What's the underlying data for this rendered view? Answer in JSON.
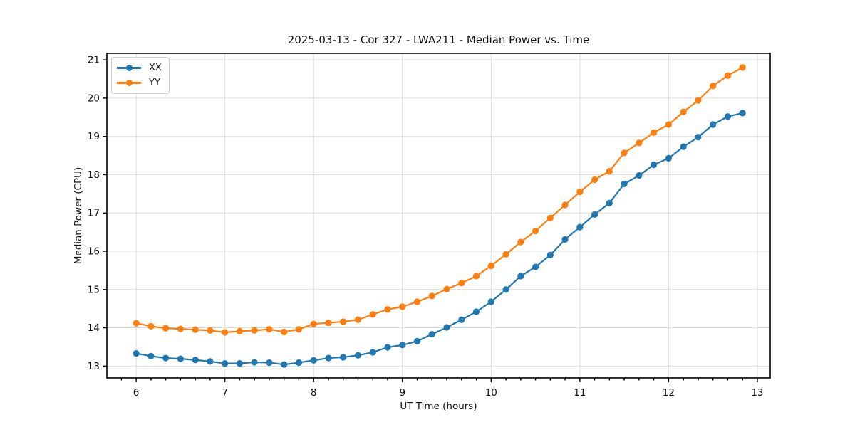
{
  "chart_data": {
    "type": "line",
    "title": "2025-03-13 - Cor 327 - LWA211 - Median Power vs. Time",
    "xlabel": "UT Time (hours)",
    "ylabel": "Median Power (CPU)",
    "x": [
      6,
      6.167,
      6.333,
      6.5,
      6.667,
      6.833,
      7,
      7.167,
      7.333,
      7.5,
      7.667,
      7.833,
      8,
      8.167,
      8.333,
      8.5,
      8.667,
      8.833,
      9,
      9.167,
      9.333,
      9.5,
      9.667,
      9.833,
      10,
      10.167,
      10.333,
      10.5,
      10.667,
      10.833,
      11,
      11.167,
      11.333,
      11.5,
      11.667,
      11.833,
      12,
      12.167,
      12.333,
      12.5,
      12.667,
      12.833
    ],
    "series": [
      {
        "name": "XX",
        "color": "#1f77b4",
        "values": [
          13.33,
          13.26,
          13.21,
          13.19,
          13.16,
          13.12,
          13.07,
          13.07,
          13.1,
          13.09,
          13.04,
          13.09,
          13.15,
          13.21,
          13.23,
          13.28,
          13.36,
          13.49,
          13.55,
          13.65,
          13.83,
          14.01,
          14.21,
          14.42,
          14.68,
          15.0,
          15.35,
          15.59,
          15.9,
          16.31,
          16.63,
          16.96,
          17.26,
          17.76,
          17.98,
          18.26,
          18.43,
          18.73,
          18.98,
          19.31,
          19.52,
          19.61
        ]
      },
      {
        "name": "YY",
        "color": "#ff7f0e",
        "values": [
          14.12,
          14.04,
          13.99,
          13.97,
          13.95,
          13.93,
          13.88,
          13.91,
          13.93,
          13.96,
          13.89,
          13.96,
          14.1,
          14.13,
          14.16,
          14.21,
          14.35,
          14.48,
          14.55,
          14.68,
          14.83,
          15.01,
          15.17,
          15.35,
          15.62,
          15.92,
          16.24,
          16.53,
          16.87,
          17.21,
          17.55,
          17.87,
          18.09,
          18.57,
          18.83,
          19.1,
          19.31,
          19.64,
          19.94,
          20.32,
          20.59,
          20.8
        ]
      }
    ],
    "xlim": [
      5.67,
      13.145
    ],
    "ylim": [
      12.69,
      21.17
    ],
    "xticks": [
      6,
      7,
      8,
      9,
      10,
      11,
      12,
      13
    ],
    "yticks": [
      13,
      14,
      15,
      16,
      17,
      18,
      19,
      20,
      21
    ],
    "x_minor_step": 0.1667,
    "grid": true,
    "grid_color": "#dcdcdc",
    "legend_position": "upper-left",
    "marker": "circle"
  }
}
